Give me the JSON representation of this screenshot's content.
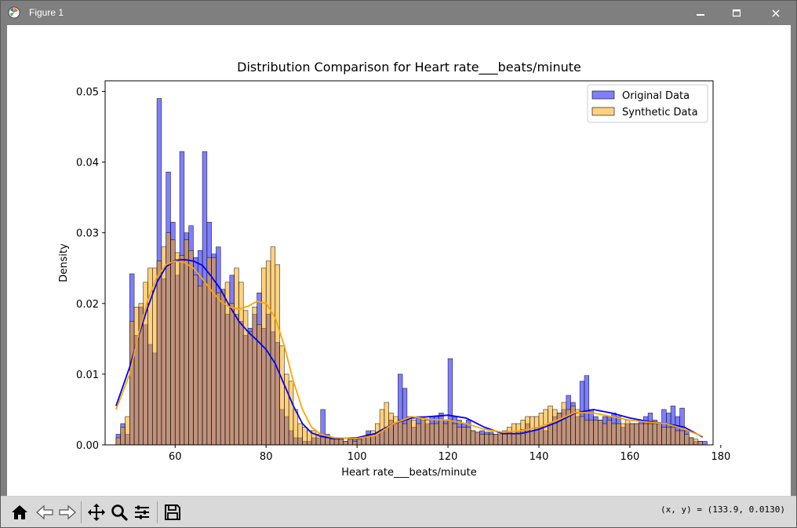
{
  "window": {
    "title": "Figure 1",
    "icons": {
      "app": "matplotlib-icon",
      "minimize": "minimize-icon",
      "maximize": "maximize-icon",
      "close": "close-icon"
    }
  },
  "toolbar": {
    "buttons": [
      {
        "name": "home-button",
        "icon": "home-icon"
      },
      {
        "name": "back-button",
        "icon": "back-arrow-icon"
      },
      {
        "name": "forward-button",
        "icon": "forward-arrow-icon"
      },
      {
        "name": "pan-button",
        "icon": "pan-icon"
      },
      {
        "name": "zoom-button",
        "icon": "zoom-icon"
      },
      {
        "name": "configure-subplots-button",
        "icon": "sliders-icon"
      },
      {
        "name": "save-button",
        "icon": "save-icon"
      }
    ],
    "coords": "(x, y) = (133.9, 0.0130)"
  },
  "colors": {
    "original": "#0000ff",
    "synthetic": "#ffa500",
    "original_fill": "rgba(0,0,255,0.5)",
    "synthetic_fill": "rgba(255,165,0,0.5)",
    "bar_edge": "#000000"
  },
  "chart_data": {
    "type": "histogram",
    "title": "Distribution Comparison for Heart rate___beats/minute",
    "xlabel": "Heart rate___beats/minute",
    "ylabel": "Density",
    "xlim": [
      44.6,
      178.3
    ],
    "ylim": [
      0,
      0.0515
    ],
    "xticks": [
      60,
      80,
      100,
      120,
      140,
      160,
      180
    ],
    "yticks": [
      0.0,
      0.01,
      0.02,
      0.03,
      0.04,
      0.05
    ],
    "ytick_labels": [
      "0.00",
      "0.01",
      "0.02",
      "0.03",
      "0.04",
      "0.05"
    ],
    "legend": {
      "placement": "upper right",
      "entries": [
        "Original Data",
        "Synthetic Data"
      ]
    },
    "bin_start": 47,
    "bin_width": 1,
    "series": [
      {
        "name": "Original Data",
        "values": [
          0.0015,
          0.003,
          0.0015,
          0.0242,
          0.0155,
          0.0195,
          0.017,
          0.0142,
          0.013,
          0.049,
          0.0235,
          0.0386,
          0.0315,
          0.024,
          0.0415,
          0.03,
          0.031,
          0.0265,
          0.0275,
          0.0415,
          0.0315,
          0.027,
          0.028,
          0.022,
          0.0185,
          0.024,
          0.0185,
          0.0175,
          0.0155,
          0.0165,
          0.0185,
          0.0215,
          0.0165,
          0.0185,
          0.016,
          0.0145,
          0.005,
          0.004,
          0.002,
          0.001,
          0.001,
          0.0005,
          0.0005,
          0.001,
          0.001,
          0.005,
          0.0015,
          0.001,
          0.001,
          0.001,
          0.0005,
          0.001,
          0.0008,
          0.0008,
          0.0012,
          0.002,
          0.0015,
          0.0015,
          0.0018,
          0.0025,
          0.0035,
          0.003,
          0.01,
          0.008,
          0.0035,
          0.0025,
          0.004,
          0.0035,
          0.003,
          0.004,
          0.004,
          0.0045,
          0.0035,
          0.0122,
          0.004,
          0.0035,
          0.003,
          0.0035,
          0.002,
          0.0018,
          0.002,
          0.0018,
          0.0018,
          0.0015,
          0.0015,
          0.0015,
          0.0018,
          0.0015,
          0.002,
          0.0022,
          0.003,
          0.002,
          0.0025,
          0.0025,
          0.002,
          0.003,
          0.004,
          0.0045,
          0.005,
          0.007,
          0.006,
          0.004,
          0.009,
          0.0098,
          0.005,
          0.004,
          0.0035,
          0.004,
          0.004,
          0.0045,
          0.004,
          0.0025,
          0.003,
          0.003,
          0.003,
          0.0035,
          0.004,
          0.0045,
          0.0035,
          0.003,
          0.005,
          0.0045,
          0.0055,
          0.004,
          0.0052,
          0.002,
          0.001,
          0.0005,
          0.0005,
          0.0005
        ],
        "kde": [
          [
            47,
            0.0055
          ],
          [
            50,
            0.011
          ],
          [
            52,
            0.0155
          ],
          [
            54,
            0.0195
          ],
          [
            56,
            0.023
          ],
          [
            58,
            0.0252
          ],
          [
            60,
            0.0261
          ],
          [
            62,
            0.0262
          ],
          [
            64,
            0.026
          ],
          [
            66,
            0.0254
          ],
          [
            68,
            0.0238
          ],
          [
            70,
            0.022
          ],
          [
            72,
            0.0196
          ],
          [
            74,
            0.0175
          ],
          [
            76,
            0.016
          ],
          [
            78,
            0.0148
          ],
          [
            80,
            0.0135
          ],
          [
            82,
            0.0115
          ],
          [
            84,
            0.0085
          ],
          [
            86,
            0.0055
          ],
          [
            88,
            0.003
          ],
          [
            90,
            0.0017
          ],
          [
            92,
            0.0012
          ],
          [
            95,
            0.0009
          ],
          [
            100,
            0.001
          ],
          [
            104,
            0.0016
          ],
          [
            108,
            0.003
          ],
          [
            112,
            0.0038
          ],
          [
            116,
            0.004
          ],
          [
            120,
            0.0042
          ],
          [
            124,
            0.0038
          ],
          [
            128,
            0.0025
          ],
          [
            132,
            0.0016
          ],
          [
            136,
            0.0016
          ],
          [
            140,
            0.0022
          ],
          [
            144,
            0.0032
          ],
          [
            148,
            0.0045
          ],
          [
            152,
            0.005
          ],
          [
            156,
            0.0045
          ],
          [
            160,
            0.0038
          ],
          [
            164,
            0.0033
          ],
          [
            168,
            0.003
          ],
          [
            172,
            0.0025
          ],
          [
            176,
            0.0011
          ]
        ]
      },
      {
        "name": "Synthetic Data",
        "values": [
          0.001,
          0.0025,
          0.004,
          0.0175,
          0.0195,
          0.02,
          0.023,
          0.025,
          0.025,
          0.026,
          0.028,
          0.03,
          0.029,
          0.0272,
          0.0268,
          0.029,
          0.0275,
          0.024,
          0.0225,
          0.023,
          0.0265,
          0.0265,
          0.0215,
          0.022,
          0.023,
          0.02,
          0.025,
          0.023,
          0.019,
          0.016,
          0.0195,
          0.017,
          0.025,
          0.026,
          0.028,
          0.0255,
          0.014,
          0.01,
          0.009,
          0.005,
          0.003,
          0.0025,
          0.002,
          0.002,
          0.0015,
          0.0012,
          0.001,
          0.0008,
          0.0008,
          0.0008,
          0.0005,
          0.0008,
          0.0005,
          0.0008,
          0.001,
          0.0015,
          0.002,
          0.003,
          0.005,
          0.006,
          0.0045,
          0.004,
          0.0035,
          0.003,
          0.004,
          0.0035,
          0.003,
          0.004,
          0.0035,
          0.003,
          0.003,
          0.0035,
          0.003,
          0.0035,
          0.003,
          0.0025,
          0.0025,
          0.0025,
          0.002,
          0.0018,
          0.0015,
          0.0015,
          0.0015,
          0.0015,
          0.0018,
          0.002,
          0.0025,
          0.003,
          0.003,
          0.0035,
          0.004,
          0.004,
          0.004,
          0.0045,
          0.005,
          0.0055,
          0.005,
          0.0045,
          0.006,
          0.005,
          0.0055,
          0.005,
          0.004,
          0.0035,
          0.0035,
          0.0035,
          0.0035,
          0.003,
          0.0035,
          0.003,
          0.003,
          0.003,
          0.0035,
          0.003,
          0.003,
          0.003,
          0.003,
          0.003,
          0.003,
          0.003,
          0.0025,
          0.0025,
          0.0025,
          0.002,
          0.002,
          0.0015,
          0.001,
          0.0008,
          0.0005
        ],
        "kde": [
          [
            47,
            0.005
          ],
          [
            50,
            0.01
          ],
          [
            52,
            0.0158
          ],
          [
            54,
            0.0205
          ],
          [
            56,
            0.0238
          ],
          [
            58,
            0.0255
          ],
          [
            60,
            0.026
          ],
          [
            62,
            0.0258
          ],
          [
            64,
            0.025
          ],
          [
            66,
            0.0235
          ],
          [
            68,
            0.0218
          ],
          [
            70,
            0.0203
          ],
          [
            72,
            0.0195
          ],
          [
            74,
            0.0192
          ],
          [
            76,
            0.0196
          ],
          [
            78,
            0.0203
          ],
          [
            80,
            0.02
          ],
          [
            82,
            0.018
          ],
          [
            84,
            0.014
          ],
          [
            86,
            0.009
          ],
          [
            88,
            0.005
          ],
          [
            90,
            0.0025
          ],
          [
            92,
            0.0015
          ],
          [
            95,
            0.001
          ],
          [
            100,
            0.0009
          ],
          [
            104,
            0.0013
          ],
          [
            108,
            0.003
          ],
          [
            112,
            0.004
          ],
          [
            116,
            0.0036
          ],
          [
            120,
            0.0035
          ],
          [
            124,
            0.003
          ],
          [
            128,
            0.0022
          ],
          [
            132,
            0.0018
          ],
          [
            136,
            0.002
          ],
          [
            140,
            0.0025
          ],
          [
            144,
            0.0035
          ],
          [
            148,
            0.0046
          ],
          [
            152,
            0.0045
          ],
          [
            156,
            0.004
          ],
          [
            160,
            0.0035
          ],
          [
            164,
            0.0032
          ],
          [
            168,
            0.003
          ],
          [
            172,
            0.0022
          ],
          [
            176,
            0.0012
          ]
        ]
      }
    ]
  }
}
